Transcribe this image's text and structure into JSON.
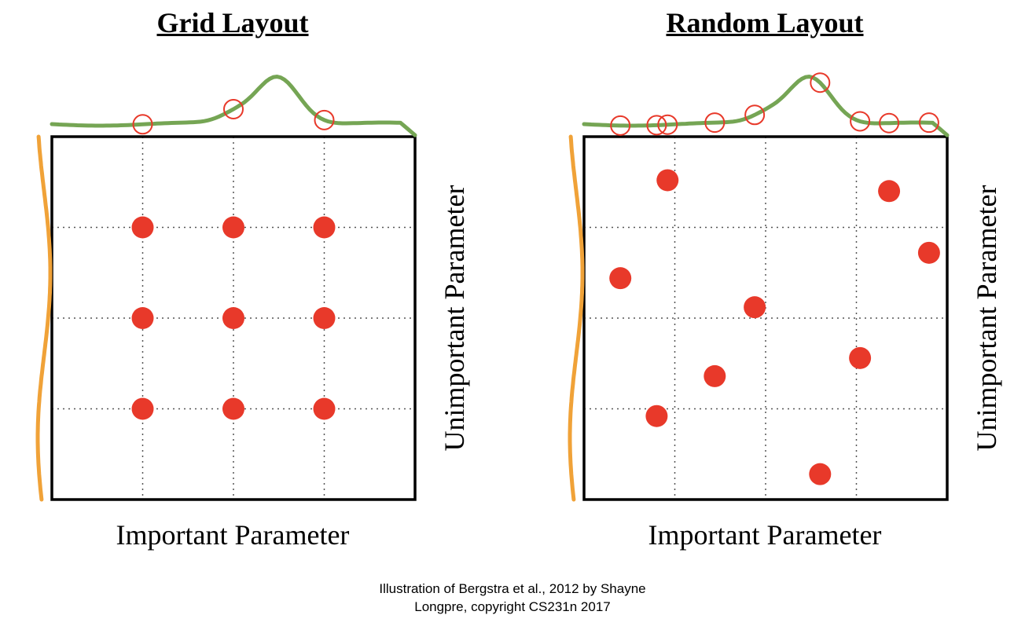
{
  "panels": [
    {
      "title": "Grid Layout",
      "xlabel": "Important Parameter",
      "ylabel": "Unimportant Parameter",
      "points": [
        [
          0.25,
          0.75
        ],
        [
          0.5,
          0.75
        ],
        [
          0.75,
          0.75
        ],
        [
          0.25,
          0.5
        ],
        [
          0.5,
          0.5
        ],
        [
          0.75,
          0.5
        ],
        [
          0.25,
          0.25
        ],
        [
          0.5,
          0.25
        ],
        [
          0.75,
          0.25
        ]
      ]
    },
    {
      "title": "Random Layout",
      "xlabel": "Important Parameter",
      "ylabel": "Unimportant Parameter",
      "points": [
        [
          0.23,
          0.88
        ],
        [
          0.84,
          0.85
        ],
        [
          0.95,
          0.68
        ],
        [
          0.1,
          0.61
        ],
        [
          0.47,
          0.53
        ],
        [
          0.76,
          0.39
        ],
        [
          0.36,
          0.34
        ],
        [
          0.2,
          0.23
        ],
        [
          0.65,
          0.07
        ]
      ]
    }
  ],
  "colors": {
    "point": "#e8392a",
    "important_curve": "#75a554",
    "unimportant_curve": "#f0a238",
    "frame": "#000000",
    "grid": "#555555"
  },
  "caption": {
    "line1": "Illustration of Bergstra et al., 2012 by Shayne",
    "line2": "Longpre, copyright CS231n 2017"
  }
}
